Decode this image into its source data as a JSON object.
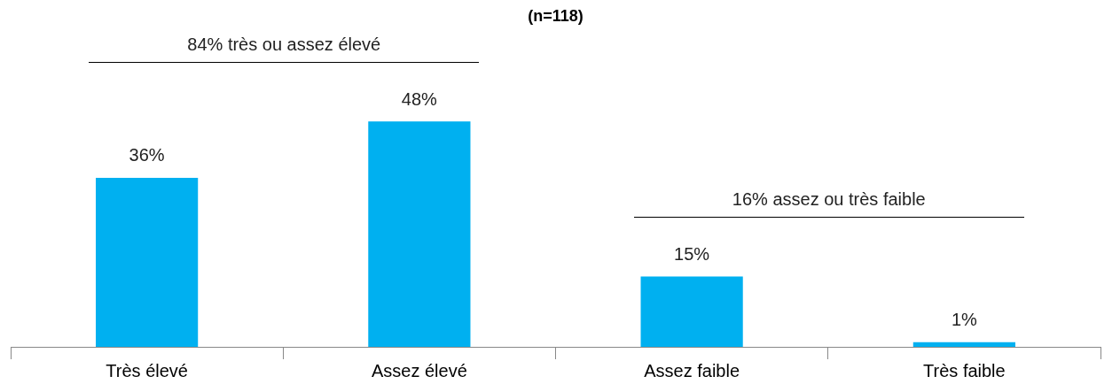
{
  "chart_data": {
    "type": "bar",
    "title": "(n=118)",
    "categories": [
      "Très élevé",
      "Assez élevé",
      "Assez faible",
      "Très faible"
    ],
    "values": [
      36,
      48,
      15,
      1
    ],
    "value_labels": [
      "36%",
      "48%",
      "15%",
      "1%"
    ],
    "color": "#00b0f0",
    "tick_labels": "x",
    "grid": false,
    "legend": false,
    "annotations": [
      "84% très ou assez élevé",
      "16% assez ou très faible"
    ]
  }
}
